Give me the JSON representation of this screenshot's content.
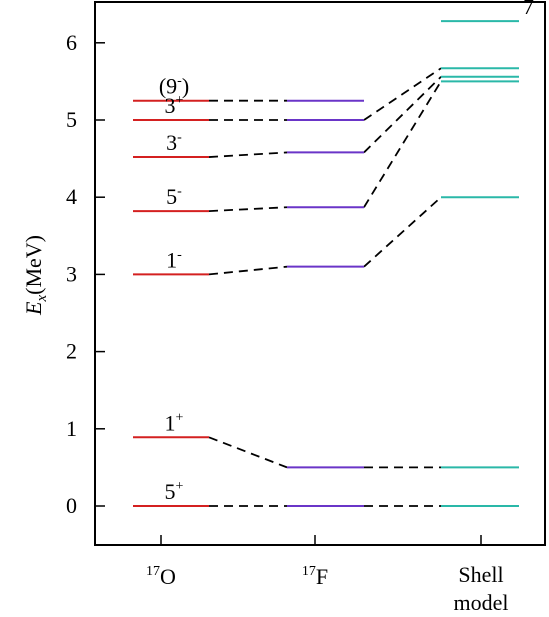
{
  "chart_data": {
    "type": "level-scheme",
    "ylabel_main": "E",
    "ylabel_sub": "x",
    "ylabel_unit": "(MeV)",
    "ylim": [
      -0.5,
      6.5
    ],
    "yticks": [
      0,
      1,
      2,
      3,
      4,
      5,
      6
    ],
    "categories": [
      {
        "name": "17O",
        "sup": "17",
        "base": "O",
        "lines": []
      },
      {
        "name": "17F",
        "sup": "17",
        "base": "F",
        "lines": []
      },
      {
        "name": "Shell model",
        "lines": [
          "Shell",
          "model"
        ]
      }
    ],
    "colors": {
      "o17": "#d42020",
      "f17": "#6a35c8",
      "shell": "#2ab8a8",
      "axis": "#000000"
    },
    "levels": {
      "o17": [
        0.0,
        0.89,
        3.0,
        3.82,
        4.52,
        5.0,
        5.25
      ],
      "f17": [
        0.0,
        0.5,
        3.1,
        3.87,
        4.58,
        5.0,
        5.25
      ],
      "shell": [
        0.0,
        0.5,
        4.0,
        5.5,
        5.56,
        5.67,
        6.28
      ]
    },
    "connections": [
      {
        "from": [
          "o17",
          0.0
        ],
        "to": [
          "f17",
          0.0
        ]
      },
      {
        "from": [
          "f17",
          0.0
        ],
        "to": [
          "shell",
          0.0
        ]
      },
      {
        "from": [
          "o17",
          0.89
        ],
        "to": [
          "f17",
          0.5
        ]
      },
      {
        "from": [
          "f17",
          0.5
        ],
        "to": [
          "shell",
          0.5
        ]
      },
      {
        "from": [
          "o17",
          3.0
        ],
        "to": [
          "f17",
          3.1
        ]
      },
      {
        "from": [
          "f17",
          3.1
        ],
        "to": [
          "shell",
          4.0
        ]
      },
      {
        "from": [
          "o17",
          3.82
        ],
        "to": [
          "f17",
          3.87
        ]
      },
      {
        "from": [
          "f17",
          3.87
        ],
        "to": [
          "shell",
          5.5
        ]
      },
      {
        "from": [
          "o17",
          4.52
        ],
        "to": [
          "f17",
          4.58
        ]
      },
      {
        "from": [
          "f17",
          4.58
        ],
        "to": [
          "shell",
          5.56
        ]
      },
      {
        "from": [
          "o17",
          5.0
        ],
        "to": [
          "f17",
          5.0
        ]
      },
      {
        "from": [
          "f17",
          5.0
        ],
        "to": [
          "shell",
          5.67
        ]
      },
      {
        "from": [
          "o17",
          5.25
        ],
        "to": [
          "f17",
          5.25
        ]
      }
    ],
    "spin_labels": [
      {
        "at": [
          "o17",
          0.0
        ],
        "base": "5",
        "sup": "+"
      },
      {
        "at": [
          "o17",
          0.89
        ],
        "base": "1",
        "sup": "+"
      },
      {
        "at": [
          "o17",
          3.0
        ],
        "base": "1",
        "sup": "-"
      },
      {
        "at": [
          "o17",
          3.82
        ],
        "base": "5",
        "sup": "-"
      },
      {
        "at": [
          "o17",
          4.52
        ],
        "base": "3",
        "sup": "-"
      },
      {
        "at": [
          "o17",
          5.0
        ],
        "base": "3",
        "sup": "+"
      },
      {
        "at": [
          "o17",
          5.25
        ],
        "base": "(9",
        "sup": "-",
        "after": ")"
      },
      {
        "at": [
          "shell",
          6.28
        ],
        "base": "7",
        "sup": "-"
      }
    ]
  }
}
